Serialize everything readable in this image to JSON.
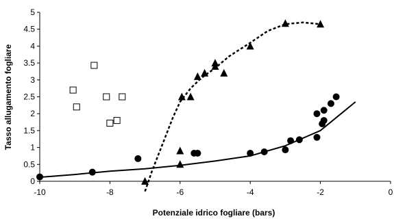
{
  "chart_data": {
    "type": "scatter",
    "title": "",
    "xlabel": "Potenziale idrico fogliare (bars)",
    "ylabel": "Tasso allugamento fogliare",
    "xlim": [
      -10,
      0
    ],
    "ylim": [
      0,
      5
    ],
    "x_ticks": [
      -10,
      -8,
      -6,
      -4,
      -2,
      0
    ],
    "y_ticks": [
      0,
      0.5,
      1,
      1.5,
      2,
      2.5,
      3,
      3.5,
      4,
      4.5,
      5
    ],
    "x_tick_labels": [
      "-10",
      "-8",
      "-6",
      "-4",
      "-2",
      "0"
    ],
    "y_tick_labels": [
      "0",
      "0.5",
      "1",
      "1.5",
      "2",
      "2.5",
      "3",
      "3.5",
      "4",
      "4.5",
      "5"
    ],
    "grid": false,
    "legend": "none",
    "series": [
      {
        "marker": "open-square",
        "color": "#000000",
        "points": [
          [
            -9.05,
            2.7
          ],
          [
            -8.95,
            2.2
          ],
          [
            -8.45,
            3.43
          ],
          [
            -8.1,
            2.5
          ],
          [
            -8.0,
            1.72
          ],
          [
            -7.8,
            1.8
          ],
          [
            -7.65,
            2.5
          ]
        ]
      },
      {
        "marker": "filled-triangle",
        "color": "#000000",
        "points": [
          [
            -7.0,
            0.0
          ],
          [
            -6.0,
            0.5
          ],
          [
            -6.0,
            0.9
          ],
          [
            -5.95,
            2.5
          ],
          [
            -5.7,
            2.5
          ],
          [
            -5.5,
            3.1
          ],
          [
            -5.3,
            3.2
          ],
          [
            -5.0,
            3.4
          ],
          [
            -5.0,
            3.5
          ],
          [
            -4.75,
            3.2
          ],
          [
            -4.0,
            4.0
          ],
          [
            -3.0,
            4.67
          ],
          [
            -2.0,
            4.65
          ]
        ]
      },
      {
        "marker": "filled-circle",
        "color": "#000000",
        "points": [
          [
            -10.0,
            0.13
          ],
          [
            -8.5,
            0.27
          ],
          [
            -7.2,
            0.67
          ],
          [
            -5.6,
            0.83
          ],
          [
            -5.5,
            0.83
          ],
          [
            -4.0,
            0.83
          ],
          [
            -3.6,
            0.87
          ],
          [
            -3.0,
            0.93
          ],
          [
            -2.85,
            1.2
          ],
          [
            -2.6,
            1.23
          ],
          [
            -2.1,
            1.3
          ],
          [
            -2.1,
            2.0
          ],
          [
            -1.95,
            1.7
          ],
          [
            -1.9,
            1.8
          ],
          [
            -1.9,
            2.1
          ],
          [
            -1.7,
            2.3
          ],
          [
            -1.55,
            2.5
          ]
        ]
      }
    ],
    "trendlines": [
      {
        "style": "dashed",
        "color": "#000000",
        "points": [
          [
            -7.0,
            -0.3
          ],
          [
            -6.8,
            0.3
          ],
          [
            -6.5,
            1.1
          ],
          [
            -6.2,
            1.9
          ],
          [
            -6.0,
            2.35
          ],
          [
            -5.7,
            2.75
          ],
          [
            -5.4,
            3.05
          ],
          [
            -5.0,
            3.35
          ],
          [
            -4.6,
            3.7
          ],
          [
            -4.0,
            4.1
          ],
          [
            -3.5,
            4.45
          ],
          [
            -3.0,
            4.65
          ],
          [
            -2.5,
            4.7
          ],
          [
            -2.0,
            4.65
          ]
        ]
      },
      {
        "style": "solid",
        "color": "#000000",
        "points": [
          [
            -10.0,
            0.12
          ],
          [
            -9.0,
            0.2
          ],
          [
            -8.0,
            0.3
          ],
          [
            -7.0,
            0.37
          ],
          [
            -6.0,
            0.47
          ],
          [
            -5.0,
            0.6
          ],
          [
            -4.0,
            0.75
          ],
          [
            -3.0,
            1.05
          ],
          [
            -2.0,
            1.5
          ],
          [
            -1.0,
            2.35
          ]
        ]
      }
    ]
  }
}
